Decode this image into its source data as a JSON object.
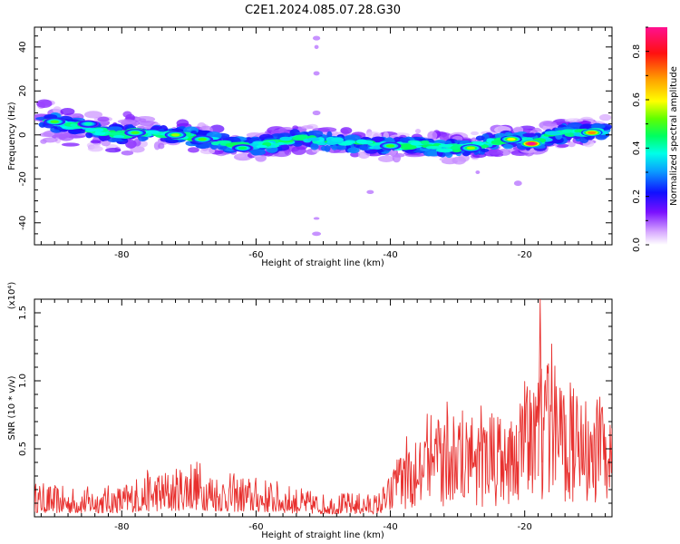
{
  "title": "C2E1.2024.085.07.28.G30",
  "chart_data": [
    {
      "type": "heatmap",
      "xlabel": "Height of straight line (km)",
      "ylabel": "Frequency (Hz)",
      "xlim": [
        -93,
        -7
      ],
      "ylim": [
        -50,
        49
      ],
      "xticks": [
        -80,
        -60,
        -40,
        -20
      ],
      "yticks": [
        -40,
        -20,
        0,
        20,
        40
      ],
      "colorbar": {
        "label": "Normalized spectral amplitude",
        "range": [
          0.0,
          0.9
        ],
        "ticks": [
          "0.0",
          "0.2",
          "0.4",
          "0.6",
          "0.8"
        ],
        "colormap": "rainbow (white-purple-blue-cyan-green-yellow-orange-red-magenta)"
      },
      "ridge": {
        "x": [
          -92,
          -89,
          -86,
          -84,
          -82,
          -80,
          -78,
          -76,
          -74,
          -72,
          -70,
          -68,
          -66,
          -64,
          -62,
          -60,
          -58,
          -56,
          -54,
          -52,
          -50,
          -48,
          -46,
          -44,
          -42,
          -40,
          -38,
          -36,
          -34,
          -32,
          -30,
          -28,
          -26,
          -24,
          -22,
          -20,
          -18,
          -16,
          -14,
          -12,
          -10,
          -8
        ],
        "y": [
          6,
          5,
          4,
          2,
          1,
          0,
          1,
          1,
          0,
          0,
          -1,
          -2,
          -3,
          -4,
          -5,
          -5,
          -4,
          -3,
          -2,
          -2,
          -3,
          -3,
          -4,
          -4,
          -5,
          -5,
          -5,
          -4,
          -5,
          -6,
          -6,
          -5,
          -4,
          -3,
          -2,
          -3,
          -3,
          0,
          1,
          1,
          1,
          2
        ]
      },
      "hotspots": [
        {
          "x": -90,
          "y": 6,
          "amp": 0.5
        },
        {
          "x": -85,
          "y": 5,
          "amp": 0.4
        },
        {
          "x": -78,
          "y": 1,
          "amp": 0.5
        },
        {
          "x": -72,
          "y": 0,
          "amp": 0.55
        },
        {
          "x": -68,
          "y": -2,
          "amp": 0.5
        },
        {
          "x": -62,
          "y": -6,
          "amp": 0.45
        },
        {
          "x": -40,
          "y": -5,
          "amp": 0.5
        },
        {
          "x": -28,
          "y": -6,
          "amp": 0.55
        },
        {
          "x": -22,
          "y": -2,
          "amp": 0.6
        },
        {
          "x": -19,
          "y": -4,
          "amp": 0.9
        },
        {
          "x": -10,
          "y": 1,
          "amp": 0.7
        }
      ],
      "outliers": [
        {
          "x": -51,
          "y": 44
        },
        {
          "x": -51,
          "y": 40
        },
        {
          "x": -51,
          "y": 28
        },
        {
          "x": -51,
          "y": 10
        },
        {
          "x": -43,
          "y": -26
        },
        {
          "x": -21,
          "y": -22
        },
        {
          "x": -27,
          "y": -17
        },
        {
          "x": -51,
          "y": -38
        },
        {
          "x": -51,
          "y": -45
        }
      ]
    },
    {
      "type": "line",
      "xlabel": "Height of straight line (km)",
      "ylabel": "SNR (10 * v/v)",
      "y_multiplier": "(x10⁴)",
      "xlim": [
        -93,
        -7
      ],
      "ylim": [
        0,
        16000
      ],
      "xticks": [
        -80,
        -60,
        -40,
        -20
      ],
      "yticks": [
        "0.5",
        "1.0",
        "1.5"
      ],
      "color": "#e8302e",
      "envelope": {
        "x": [
          -93,
          -88,
          -84,
          -80,
          -76,
          -72,
          -70,
          -66,
          -62,
          -58,
          -54,
          -50,
          -46,
          -42,
          -40,
          -38,
          -36,
          -34,
          -32,
          -30,
          -28,
          -26,
          -24,
          -22,
          -20,
          -18,
          -16,
          -14,
          -12,
          -10,
          -8,
          -7
        ],
        "y": [
          2600,
          2200,
          2300,
          2400,
          3500,
          3600,
          4700,
          3400,
          3100,
          2800,
          2200,
          1700,
          1800,
          1700,
          3200,
          5600,
          7300,
          8200,
          8600,
          8400,
          8000,
          8500,
          8200,
          7400,
          11000,
          14000,
          12800,
          12500,
          10500,
          9500,
          8800,
          7800
        ]
      }
    }
  ]
}
